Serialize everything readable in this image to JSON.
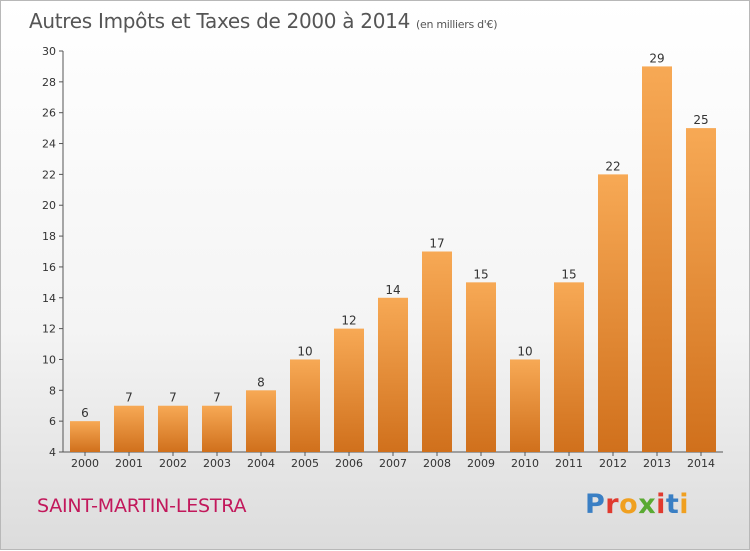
{
  "header": {
    "title": "Autres Impôts et Taxes de 2000 à 2014",
    "subtitle": "(en milliers d'€)"
  },
  "footer": {
    "commune": "SAINT-MARTIN-LESTRA",
    "logo": "Proxiti"
  },
  "colors": {
    "bar_light": "#f7a955",
    "bar_dark": "#d0701c",
    "commune_text": "#c2185b",
    "logo_letters": [
      "#3a7fc4",
      "#e03a2f",
      "#f0a020",
      "#5aaa32",
      "#e03a2f",
      "#3a7fc4",
      "#f0a020"
    ]
  },
  "chart_data": {
    "type": "bar",
    "categories": [
      "2000",
      "2001",
      "2002",
      "2003",
      "2004",
      "2005",
      "2006",
      "2007",
      "2008",
      "2009",
      "2010",
      "2011",
      "2012",
      "2013",
      "2014"
    ],
    "values": [
      6,
      7,
      7,
      7,
      8,
      10,
      12,
      14,
      17,
      15,
      10,
      15,
      22,
      29,
      25
    ],
    "title": "Autres Impôts et Taxes de 2000 à 2014",
    "subtitle": "(en milliers d'€)",
    "ylim": [
      4,
      30
    ],
    "yticks": [
      4,
      6,
      8,
      10,
      12,
      14,
      16,
      18,
      20,
      22,
      24,
      26,
      28,
      30
    ],
    "grid": false,
    "legend": "none"
  }
}
